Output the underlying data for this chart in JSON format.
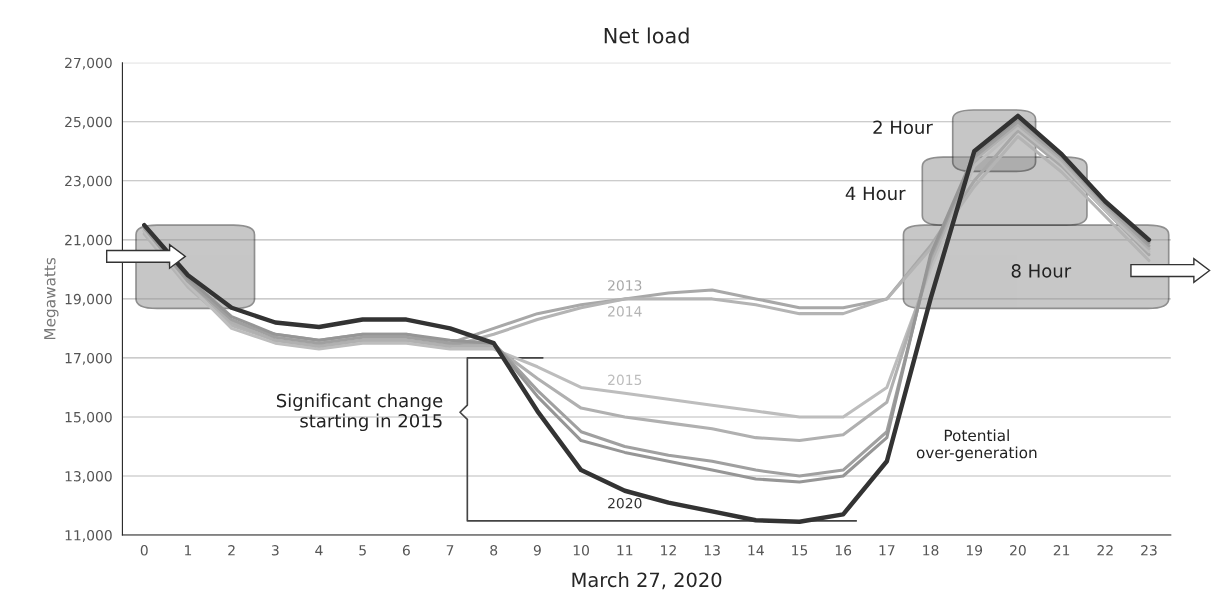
{
  "chart_data": {
    "type": "line",
    "title": "Net load",
    "xlabel": "March 27, 2020",
    "ylabel": "Megawatts",
    "categories": [
      "0",
      "1",
      "2",
      "3",
      "4",
      "5",
      "6",
      "7",
      "8",
      "9",
      "10",
      "11",
      "12",
      "13",
      "14",
      "15",
      "16",
      "17",
      "18",
      "19",
      "20",
      "21",
      "22",
      "23"
    ],
    "series": [
      {
        "name": "2013",
        "color": "#a8a8a8",
        "values": [
          21300,
          19500,
          18200,
          17800,
          17600,
          17800,
          17800,
          17500,
          18000,
          18500,
          18800,
          19000,
          19200,
          19300,
          19000,
          18700,
          18700,
          19000,
          20800,
          23000,
          24700,
          23500,
          22000,
          20500
        ]
      },
      {
        "name": "2014",
        "color": "#b4b4b4",
        "values": [
          21200,
          19400,
          18100,
          17600,
          17400,
          17600,
          17600,
          17400,
          17800,
          18300,
          18700,
          19000,
          19000,
          19000,
          18800,
          18500,
          18500,
          19000,
          20700,
          22800,
          24500,
          23300,
          21800,
          20300
        ]
      },
      {
        "name": "2015",
        "color": "#bdbdbd",
        "values": [
          21300,
          19500,
          18000,
          17500,
          17300,
          17500,
          17500,
          17300,
          17300,
          16700,
          16000,
          15800,
          15600,
          15400,
          15200,
          15000,
          15000,
          16000,
          20000,
          23500,
          24800,
          23600,
          22000,
          20600
        ]
      },
      {
        "color": "#b0b0b0",
        "values": [
          21400,
          19600,
          18200,
          17600,
          17400,
          17600,
          17600,
          17400,
          17400,
          16300,
          15300,
          15000,
          14800,
          14600,
          14300,
          14200,
          14400,
          15500,
          20200,
          23700,
          24900,
          23700,
          22100,
          20700
        ]
      },
      {
        "color": "#a0a0a0",
        "values": [
          21400,
          19600,
          18300,
          17700,
          17500,
          17700,
          17700,
          17500,
          17500,
          15900,
          14500,
          14000,
          13700,
          13500,
          13200,
          13000,
          13200,
          14500,
          20400,
          23800,
          25000,
          23800,
          22200,
          20800
        ]
      },
      {
        "color": "#969696",
        "values": [
          21500,
          19700,
          18400,
          17800,
          17600,
          17800,
          17800,
          17600,
          17500,
          15700,
          14200,
          13800,
          13500,
          13200,
          12900,
          12800,
          13000,
          14300,
          20500,
          23900,
          25100,
          23900,
          22300,
          20900
        ]
      },
      {
        "name": "2020",
        "color": "#333333",
        "values": [
          21500,
          19800,
          18700,
          18200,
          18050,
          18300,
          18300,
          18000,
          17500,
          15200,
          13200,
          12500,
          12100,
          11800,
          11500,
          11450,
          11700,
          13500,
          19000,
          24000,
          25200,
          23900,
          22300,
          21000
        ]
      }
    ],
    "ylim": [
      11000,
      27000
    ],
    "yticks": [
      {
        "value": 11000,
        "label": "11,000"
      },
      {
        "value": 13000,
        "label": "13,000"
      },
      {
        "value": 15000,
        "label": "15,000"
      },
      {
        "value": 17000,
        "label": "17,000"
      },
      {
        "value": 19000,
        "label": "19,000"
      },
      {
        "value": 21000,
        "label": "21,000"
      },
      {
        "value": 23000,
        "label": "23,000"
      },
      {
        "value": 25000,
        "label": "25,000"
      },
      {
        "value": 27000,
        "label": "27,000"
      }
    ],
    "grid": "y",
    "legend": false,
    "marker": "none",
    "line_style": "solid",
    "annotations": [
      "Significant change\nstarting in 2015",
      "Potential\nover-generation",
      "2 Hour",
      "4 Hour",
      "8 Hour"
    ]
  }
}
